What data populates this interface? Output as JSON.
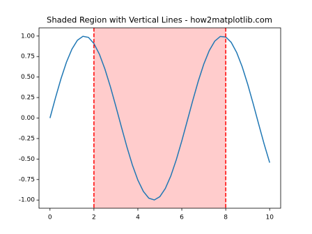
{
  "chart_data": {
    "type": "line",
    "title": "Shaded Region with Vertical Lines - how2matplotlib.com",
    "x": [
      0,
      0.25,
      0.5,
      0.75,
      1,
      1.25,
      1.5,
      1.75,
      2,
      2.25,
      2.5,
      2.75,
      3,
      3.25,
      3.5,
      3.75,
      4,
      4.25,
      4.5,
      4.75,
      5,
      5.25,
      5.5,
      5.75,
      6,
      6.25,
      6.5,
      6.75,
      7,
      7.25,
      7.5,
      7.75,
      8,
      8.25,
      8.5,
      8.75,
      9,
      9.25,
      9.5,
      9.75,
      10
    ],
    "series": [
      {
        "color": "#1f77b4",
        "values": [
          0,
          0.247,
          0.479,
          0.682,
          0.841,
          0.949,
          0.997,
          0.984,
          0.909,
          0.778,
          0.598,
          0.382,
          0.141,
          -0.108,
          -0.351,
          -0.572,
          -0.757,
          -0.895,
          -0.978,
          -0.999,
          -0.959,
          -0.859,
          -0.706,
          -0.508,
          -0.279,
          -0.033,
          0.215,
          0.45,
          0.657,
          0.823,
          0.938,
          0.995,
          0.989,
          0.923,
          0.798,
          0.624,
          0.412,
          0.174,
          -0.075,
          -0.319,
          -0.544
        ]
      }
    ],
    "shaded_region": [
      2,
      8
    ],
    "shaded_color": "#ffcccc",
    "vlines": [
      2,
      8
    ],
    "vline_color": "#ff0000",
    "vline_style": "dashed",
    "xlim": [
      -0.5,
      10.5
    ],
    "xticks": [
      0,
      2,
      4,
      6,
      8,
      10
    ],
    "ylim": [
      -1.1,
      1.1
    ],
    "yticks": [
      {
        "value": -1,
        "label": "-1.00"
      },
      {
        "value": -0.75,
        "label": "-0.75"
      },
      {
        "value": -0.5,
        "label": "-0.50"
      },
      {
        "value": -0.25,
        "label": "-0.25"
      },
      {
        "value": 0,
        "label": "0.00"
      },
      {
        "value": 0.25,
        "label": "0.25"
      },
      {
        "value": 0.5,
        "label": "0.50"
      },
      {
        "value": 0.75,
        "label": "0.75"
      },
      {
        "value": 1,
        "label": "1.00"
      }
    ],
    "grid": false
  }
}
